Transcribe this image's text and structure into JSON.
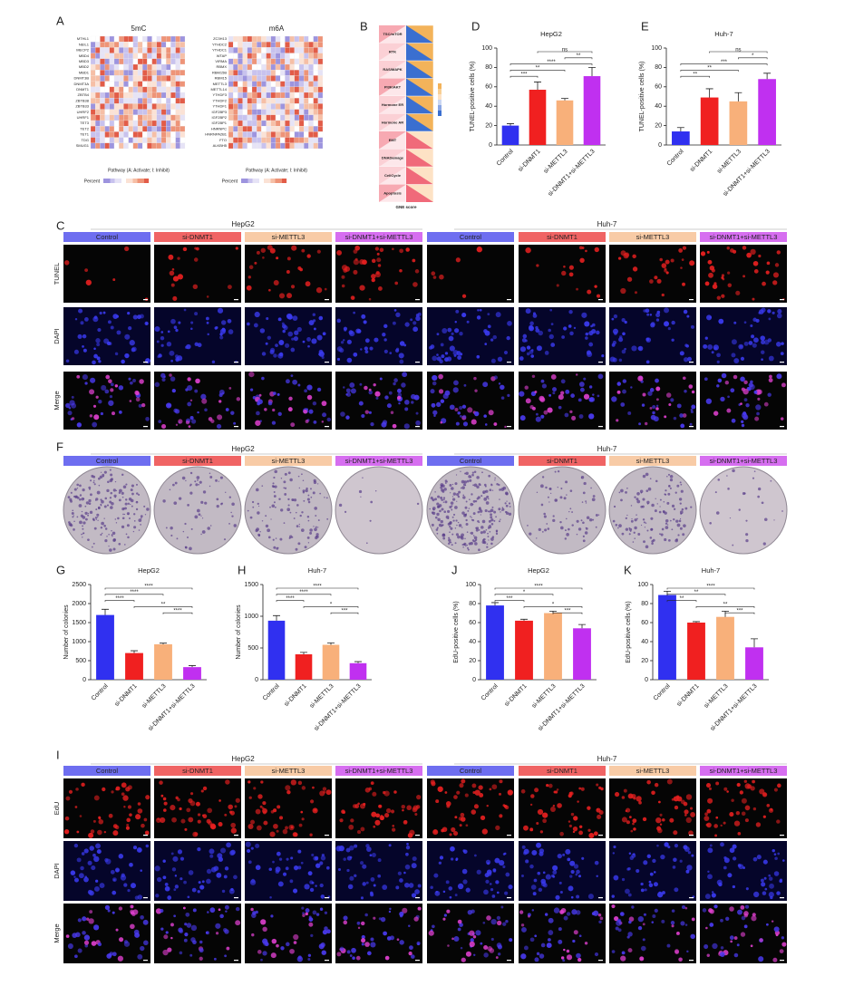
{
  "panel_labels": [
    "A",
    "B",
    "C",
    "D",
    "E",
    "F",
    "G",
    "H",
    "I",
    "J",
    "K"
  ],
  "panel_a": {
    "heatmaps": [
      {
        "title": "5mC",
        "rows": [
          "MTHL1",
          "NEIL1",
          "MECP2",
          "MBD4",
          "MBD3",
          "MBD2",
          "MBD1",
          "DNMT3B",
          "DNMT3A",
          "DNMT1",
          "ZBTB4",
          "ZBTB38",
          "ZBTB33",
          "UHRF2",
          "UHRF1",
          "TET3",
          "TET2",
          "TET1",
          "TDG",
          "SMUG1"
        ],
        "x_label": "Pathway (A: Activate; I: Inhibit)",
        "legend_title": "Percent"
      },
      {
        "title": "m6A",
        "rows": [
          "ZC3H13",
          "YTHDC2",
          "YTHDC1",
          "WTAP",
          "VIRMA",
          "RBMX",
          "RBM15B",
          "RBM15",
          "METTL3",
          "METTL14",
          "YTHDF3",
          "YTHDF2",
          "YTHDF1",
          "IGF2BP3",
          "IGF2BP2",
          "IGF2BP1",
          "HNRNPC",
          "HNRNPA2B1",
          "FTO",
          "ALKBH5"
        ],
        "x_label": "Pathway (A: Activate; I: Inhibit)",
        "legend_title": "Percent"
      }
    ]
  },
  "panel_b": {
    "pathways": [
      "TSC/mTOR",
      "RTK",
      "RAS/MAPK",
      "PI3K/AKT",
      "Hormone ER",
      "Hormone AR",
      "EMT",
      "DNADamage",
      "CellCycle",
      "Apoptosis"
    ],
    "x_label": "GNE score"
  },
  "chart_data": [
    {
      "type": "bar",
      "title": "HepG2",
      "y_label": "TUNEL-positive cells (%)",
      "categories": [
        "Control",
        "si-DNMT1",
        "si-METTL3",
        "si-DNMT1+si-METTL3"
      ],
      "values": [
        20,
        57,
        46,
        71
      ],
      "errors": [
        2,
        8,
        2,
        9
      ],
      "colors": [
        "#3030f0",
        "#f02020",
        "#f8b07a",
        "#c030f0"
      ],
      "ylim": [
        0,
        100
      ],
      "yticks": [
        0,
        20,
        40,
        60,
        80,
        100
      ],
      "significance": [
        {
          "between": [
            "si-DNMT1",
            "si-DNMT1+si-METTL3"
          ],
          "label": "ns"
        },
        {
          "between": [
            "si-METTL3",
            "si-DNMT1+si-METTL3"
          ],
          "label": "**"
        },
        {
          "between": [
            "Control",
            "si-DNMT1+si-METTL3"
          ],
          "label": "****"
        },
        {
          "between": [
            "Control",
            "si-METTL3"
          ],
          "label": "**"
        },
        {
          "between": [
            "Control",
            "si-DNMT1"
          ],
          "label": "***"
        }
      ]
    },
    {
      "type": "bar",
      "title": "Huh-7",
      "y_label": "TUNEL-positive cells (%)",
      "categories": [
        "Control",
        "si-DNMT1",
        "si-METTL3",
        "si-DNMT1+si-METTL3"
      ],
      "values": [
        14,
        49,
        45,
        68
      ],
      "errors": [
        4,
        9,
        9,
        6
      ],
      "colors": [
        "#3030f0",
        "#f02020",
        "#f8b07a",
        "#c030f0"
      ],
      "ylim": [
        0,
        100
      ],
      "yticks": [
        0,
        20,
        40,
        60,
        80,
        100
      ],
      "significance": [
        {
          "between": [
            "si-DNMT1",
            "si-DNMT1+si-METTL3"
          ],
          "label": "ns"
        },
        {
          "between": [
            "si-METTL3",
            "si-DNMT1+si-METTL3"
          ],
          "label": "*"
        },
        {
          "between": [
            "Control",
            "si-DNMT1+si-METTL3"
          ],
          "label": "***"
        },
        {
          "between": [
            "Control",
            "si-METTL3"
          ],
          "label": "**"
        },
        {
          "between": [
            "Control",
            "si-DNMT1"
          ],
          "label": "**"
        }
      ]
    },
    {
      "type": "bar",
      "title": "HepG2",
      "y_label": "Number of colonies",
      "categories": [
        "Control",
        "si-DNMT1",
        "si-METTL3",
        "si-DNMT1+si-METTL3"
      ],
      "values": [
        1700,
        700,
        930,
        330
      ],
      "errors": [
        150,
        60,
        30,
        40
      ],
      "colors": [
        "#3030f0",
        "#f02020",
        "#f8b07a",
        "#c030f0"
      ],
      "ylim": [
        0,
        2500
      ],
      "yticks": [
        0,
        500,
        1000,
        1500,
        2000,
        2500
      ],
      "significance": [
        {
          "between": [
            "Control",
            "si-DNMT1+si-METTL3"
          ],
          "label": "****"
        },
        {
          "between": [
            "Control",
            "si-METTL3"
          ],
          "label": "****"
        },
        {
          "between": [
            "Control",
            "si-DNMT1"
          ],
          "label": "****"
        },
        {
          "between": [
            "si-DNMT1",
            "si-DNMT1+si-METTL3"
          ],
          "label": "**"
        },
        {
          "between": [
            "si-METTL3",
            "si-DNMT1+si-METTL3"
          ],
          "label": "****"
        }
      ]
    },
    {
      "type": "bar",
      "title": "Huh-7",
      "y_label": "Number of colonies",
      "categories": [
        "Control",
        "si-DNMT1",
        "si-METTL3",
        "si-DNMT1+si-METTL3"
      ],
      "values": [
        930,
        400,
        550,
        260
      ],
      "errors": [
        80,
        30,
        30,
        25
      ],
      "colors": [
        "#3030f0",
        "#f02020",
        "#f8b07a",
        "#c030f0"
      ],
      "ylim": [
        0,
        1500
      ],
      "yticks": [
        0,
        500,
        1000,
        1500
      ],
      "significance": [
        {
          "between": [
            "Control",
            "si-DNMT1+si-METTL3"
          ],
          "label": "****"
        },
        {
          "between": [
            "Control",
            "si-METTL3"
          ],
          "label": "****"
        },
        {
          "between": [
            "Control",
            "si-DNMT1"
          ],
          "label": "****"
        },
        {
          "between": [
            "si-DNMT1",
            "si-DNMT1+si-METTL3"
          ],
          "label": "*"
        },
        {
          "between": [
            "si-METTL3",
            "si-DNMT1+si-METTL3"
          ],
          "label": "***"
        }
      ]
    },
    {
      "type": "bar",
      "title": "HepG2",
      "y_label": "EdU-positive cells (%)",
      "categories": [
        "Control",
        "si-DNMT1",
        "si-METTL3",
        "si-DNMT1+si-METTL3"
      ],
      "values": [
        78,
        62,
        70,
        54
      ],
      "errors": [
        3,
        1.5,
        2,
        4
      ],
      "colors": [
        "#3030f0",
        "#f02020",
        "#f8b07a",
        "#c030f0"
      ],
      "ylim": [
        0,
        100
      ],
      "yticks": [
        0,
        20,
        40,
        60,
        80,
        100
      ],
      "significance": [
        {
          "between": [
            "Control",
            "si-DNMT1+si-METTL3"
          ],
          "label": "****"
        },
        {
          "between": [
            "Control",
            "si-METTL3"
          ],
          "label": "*"
        },
        {
          "between": [
            "Control",
            "si-DNMT1"
          ],
          "label": "***"
        },
        {
          "between": [
            "si-DNMT1",
            "si-DNMT1+si-METTL3"
          ],
          "label": "*"
        },
        {
          "between": [
            "si-METTL3",
            "si-DNMT1+si-METTL3"
          ],
          "label": "***"
        }
      ]
    },
    {
      "type": "bar",
      "title": "Huh-7",
      "y_label": "EdU-positive cells (%)",
      "categories": [
        "Control",
        "si-DNMT1",
        "si-METTL3",
        "si-DNMT1+si-METTL3"
      ],
      "values": [
        89,
        60,
        66,
        34
      ],
      "errors": [
        4,
        1,
        6,
        9
      ],
      "colors": [
        "#3030f0",
        "#f02020",
        "#f8b07a",
        "#c030f0"
      ],
      "ylim": [
        0,
        100
      ],
      "yticks": [
        0,
        20,
        40,
        60,
        80,
        100
      ],
      "significance": [
        {
          "between": [
            "Control",
            "si-DNMT1+si-METTL3"
          ],
          "label": "****"
        },
        {
          "between": [
            "Control",
            "si-METTL3"
          ],
          "label": "**"
        },
        {
          "between": [
            "Control",
            "si-DNMT1"
          ],
          "label": "**"
        },
        {
          "between": [
            "si-DNMT1",
            "si-DNMT1+si-METTL3"
          ],
          "label": "**"
        },
        {
          "between": [
            "si-METTL3",
            "si-DNMT1+si-METTL3"
          ],
          "label": "***"
        }
      ]
    }
  ],
  "panel_c": {
    "groups": [
      "HepG2",
      "Huh-7"
    ],
    "conditions": [
      "Control",
      "si-DNMT1",
      "si-METTL3",
      "si-DNMT1+si-METTL3"
    ],
    "colors": [
      "#6e6ef0",
      "#f06464",
      "#f8cba6",
      "#d66ef0"
    ],
    "rows": [
      "TUNEL",
      "DAPI",
      "Merge"
    ]
  },
  "panel_f": {
    "groups": [
      "HepG2",
      "Huh-7"
    ],
    "conditions": [
      "Control",
      "si-DNMT1",
      "si-METTL3",
      "si-DNMT1+si-METTL3"
    ],
    "colors": [
      "#6e6ef0",
      "#f06464",
      "#f8cba6",
      "#d66ef0"
    ]
  },
  "panel_i": {
    "groups": [
      "HepG2",
      "Huh-7"
    ],
    "conditions": [
      "Control",
      "si-DNMT1",
      "si-METTL3",
      "si-DNMT1+si-METTL3"
    ],
    "colors": [
      "#6e6ef0",
      "#f06464",
      "#f8cba6",
      "#d66ef0"
    ],
    "rows": [
      "EdU",
      "DAPI",
      "Merge"
    ]
  }
}
